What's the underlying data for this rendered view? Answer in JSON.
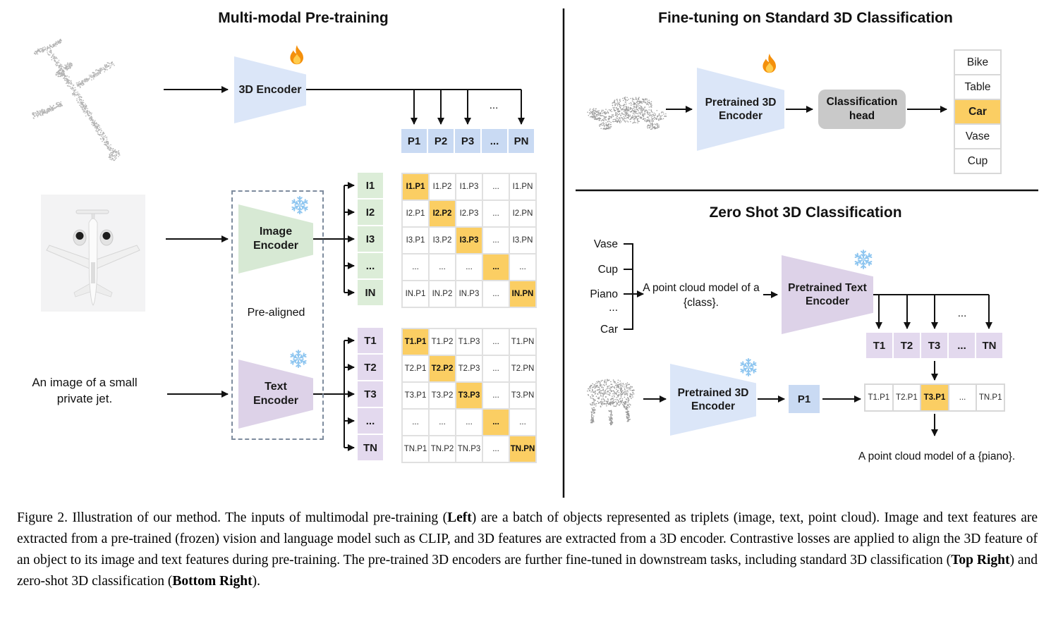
{
  "figure": {
    "left": {
      "title": "Multi-modal Pre-training",
      "encoder3d_label": "3D Encoder",
      "image_encoder_label": "Image\nEncoder",
      "text_encoder_label": "Text\nEncoder",
      "prealigned_label": "Pre-aligned",
      "jet_text": "An image of a small private jet.",
      "p_row": [
        "P1",
        "P2",
        "P3",
        "...",
        "PN"
      ],
      "p_dots": "...",
      "image_rows": [
        "I1",
        "I2",
        "I3",
        "...",
        "IN"
      ],
      "image_matrix": [
        [
          "I1.P1",
          "I1.P2",
          "I1.P3",
          "...",
          "I1.PN"
        ],
        [
          "I2.P1",
          "I2.P2",
          "I2.P3",
          "...",
          "I2.PN"
        ],
        [
          "I3.P1",
          "I3.P2",
          "I3.P3",
          "...",
          "I3.PN"
        ],
        [
          "...",
          "...",
          "...",
          "...",
          "..."
        ],
        [
          "IN.P1",
          "IN.P2",
          "IN.P3",
          "...",
          "IN.PN"
        ]
      ],
      "text_rows": [
        "T1",
        "T2",
        "T3",
        "...",
        "TN"
      ],
      "text_matrix": [
        [
          "T1.P1",
          "T1.P2",
          "T1.P3",
          "...",
          "T1.PN"
        ],
        [
          "T2.P1",
          "T2.P2",
          "T2.P3",
          "...",
          "T2.PN"
        ],
        [
          "T3.P1",
          "T3.P2",
          "T3.P3",
          "...",
          "T3.PN"
        ],
        [
          "...",
          "...",
          "...",
          "...",
          "..."
        ],
        [
          "TN.P1",
          "TN.P2",
          "TN.P3",
          "...",
          "TN.PN"
        ]
      ]
    },
    "top_right": {
      "title": "Fine-tuning on Standard 3D Classification",
      "encoder_label": "Pretrained 3D\nEncoder",
      "head_label": "Classification\nhead",
      "classes": [
        "Bike",
        "Table",
        "Car",
        "Vase",
        "Cup"
      ],
      "highlighted_class": "Car"
    },
    "bottom_right": {
      "title": "Zero Shot 3D Classification",
      "class_list": [
        "Vase",
        "Cup",
        "Piano",
        "...",
        "Car"
      ],
      "prompt": "A point cloud model of a {class}.",
      "text_encoder_label": "Pretrained Text\nEncoder",
      "t_row": [
        "T1",
        "T2",
        "T3",
        "...",
        "TN"
      ],
      "t_dots": "...",
      "encoder3d_label": "Pretrained 3D\nEncoder",
      "p1_label": "P1",
      "sim_row": [
        "T1.P1",
        "T2.P1",
        "T3.P1",
        "...",
        "TN.P1"
      ],
      "highlighted_sim": "T3.P1",
      "result_text": "A point cloud model of a {piano}."
    },
    "caption_segments": [
      {
        "text": "Figure 2. Illustration of our method. The inputs of multimodal pre-training (",
        "bold": false
      },
      {
        "text": "Left",
        "bold": true
      },
      {
        "text": ") are a batch of objects represented as triplets (image, text, point cloud). Image and text features are extracted from a pre-trained (frozen) vision and language model such as CLIP, and 3D features are extracted from a 3D encoder. Contrastive losses are applied to align the 3D feature of an object to its image and text features during pre-training. The pre-trained 3D encoders are further fine-tuned in downstream tasks, including standard 3D classification (",
        "bold": false
      },
      {
        "text": "Top Right",
        "bold": true
      },
      {
        "text": ") and zero-shot 3D classification (",
        "bold": false
      },
      {
        "text": "Bottom Right",
        "bold": true
      },
      {
        "text": ").",
        "bold": false
      }
    ]
  },
  "colors": {
    "blue_fill": "#dbe6f8",
    "blue_cell": "#c9daf3",
    "green_fill": "#d7e9d4",
    "green_cell": "#dcedd8",
    "purple_fill": "#ddd2e8",
    "purple_cell": "#e3d9ee",
    "highlight_orange": "#fbce63",
    "head_gray": "#c9c9c9",
    "point_gray": "#b3b3b3",
    "point_gray_dark": "#9a9a9a"
  }
}
